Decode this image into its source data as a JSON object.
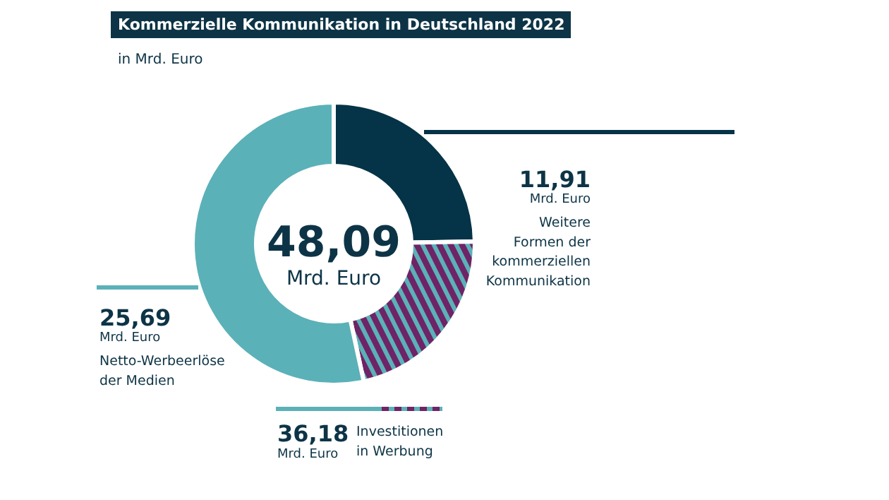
{
  "chart_data": {
    "type": "donut",
    "title": "Kommerzielle Kommunikation in Deutschland 2022",
    "subtitle": "in Mrd. Euro",
    "categories": [
      "Weitere\nFormen der\nkommerziellen\nKommunikation",
      null,
      "Netto-Werbeerlöse\nder Medien"
    ],
    "values": [
      11.91,
      10.49,
      25.69
    ],
    "colors": [
      "#053347",
      "#6e2466",
      "#5bb1b8"
    ],
    "value_labels": [
      "11,91\nMrd. Euro",
      null,
      "25,69\nMrd. Euro"
    ],
    "annotations": [
      "48,09\nMrd. Euro",
      "36,18\nMrd. Euro",
      "Investitionen\nin Werbung"
    ]
  }
}
